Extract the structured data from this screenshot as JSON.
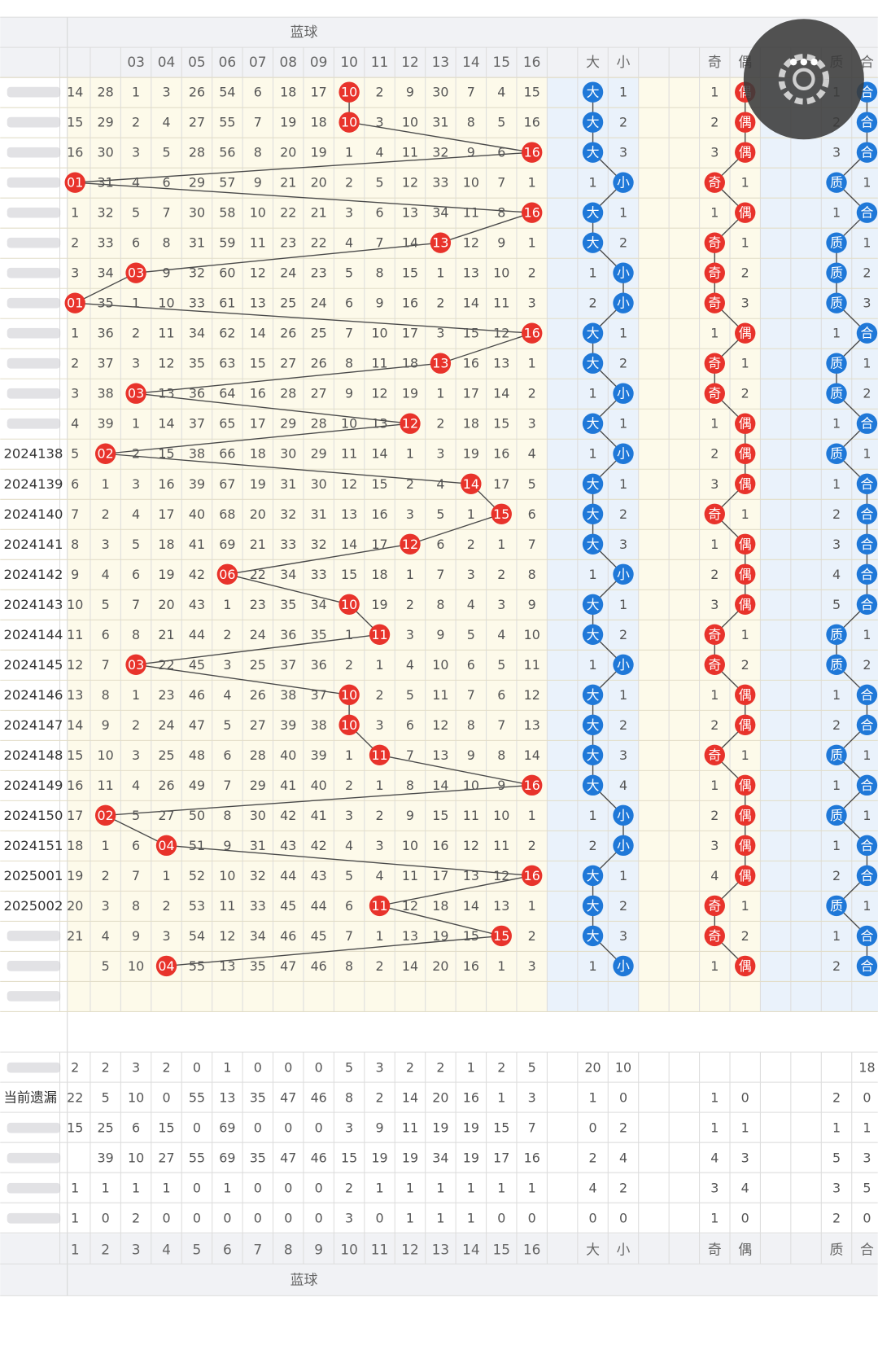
{
  "header": {
    "group_top": "蓝球",
    "columns": [
      null,
      null,
      "03",
      "04",
      "05",
      "06",
      "07",
      "08",
      "09",
      "10",
      "11",
      "12",
      "13",
      "14",
      "15",
      "16",
      null,
      "大",
      "小",
      null,
      null,
      "奇",
      "偶",
      null,
      null,
      "质",
      "合"
    ]
  },
  "rows": [
    {
      "issue": null,
      "blue": [
        "14",
        "28",
        "1",
        "3",
        "26",
        "54",
        "6",
        "18",
        "17",
        "10",
        "2",
        "9",
        "30",
        "7",
        "4",
        "15"
      ],
      "hit": 9,
      "big_small": [
        "大",
        "1"
      ],
      "odd_even": [
        "1",
        "偶"
      ],
      "prime_composite": [
        "1",
        "合"
      ]
    },
    {
      "issue": null,
      "blue": [
        "15",
        "29",
        "2",
        "4",
        "27",
        "55",
        "7",
        "19",
        "18",
        "10",
        "3",
        "10",
        "31",
        "8",
        "5",
        "16"
      ],
      "hit": 9,
      "big_small": [
        "大",
        "2"
      ],
      "odd_even": [
        "2",
        "偶"
      ],
      "prime_composite": [
        "2",
        "合"
      ]
    },
    {
      "issue": null,
      "blue": [
        "16",
        "30",
        "3",
        "5",
        "28",
        "56",
        "8",
        "20",
        "19",
        "1",
        "4",
        "11",
        "32",
        "9",
        "6",
        "16"
      ],
      "hit": 15,
      "big_small": [
        "大",
        "3"
      ],
      "odd_even": [
        "3",
        "偶"
      ],
      "prime_composite": [
        "3",
        "合"
      ]
    },
    {
      "issue": null,
      "blue": [
        "01",
        "31",
        "4",
        "6",
        "29",
        "57",
        "9",
        "21",
        "20",
        "2",
        "5",
        "12",
        "33",
        "10",
        "7",
        "1"
      ],
      "hit": 0,
      "big_small": [
        "1",
        "小"
      ],
      "odd_even": [
        "奇",
        "1"
      ],
      "prime_composite": [
        "质",
        "1"
      ]
    },
    {
      "issue": null,
      "blue": [
        "1",
        "32",
        "5",
        "7",
        "30",
        "58",
        "10",
        "22",
        "21",
        "3",
        "6",
        "13",
        "34",
        "11",
        "8",
        "16"
      ],
      "hit": 15,
      "big_small": [
        "大",
        "1"
      ],
      "odd_even": [
        "1",
        "偶"
      ],
      "prime_composite": [
        "1",
        "合"
      ]
    },
    {
      "issue": null,
      "blue": [
        "2",
        "33",
        "6",
        "8",
        "31",
        "59",
        "11",
        "23",
        "22",
        "4",
        "7",
        "14",
        "13",
        "12",
        "9",
        "1"
      ],
      "hit": 12,
      "big_small": [
        "大",
        "2"
      ],
      "odd_even": [
        "奇",
        "1"
      ],
      "prime_composite": [
        "质",
        "1"
      ]
    },
    {
      "issue": null,
      "blue": [
        "3",
        "34",
        "03",
        "9",
        "32",
        "60",
        "12",
        "24",
        "23",
        "5",
        "8",
        "15",
        "1",
        "13",
        "10",
        "2"
      ],
      "hit": 2,
      "big_small": [
        "1",
        "小"
      ],
      "odd_even": [
        "奇",
        "2"
      ],
      "prime_composite": [
        "质",
        "2"
      ]
    },
    {
      "issue": null,
      "blue": [
        "01",
        "35",
        "1",
        "10",
        "33",
        "61",
        "13",
        "25",
        "24",
        "6",
        "9",
        "16",
        "2",
        "14",
        "11",
        "3"
      ],
      "hit": 0,
      "big_small": [
        "2",
        "小"
      ],
      "odd_even": [
        "奇",
        "3"
      ],
      "prime_composite": [
        "质",
        "3"
      ]
    },
    {
      "issue": null,
      "blue": [
        "1",
        "36",
        "2",
        "11",
        "34",
        "62",
        "14",
        "26",
        "25",
        "7",
        "10",
        "17",
        "3",
        "15",
        "12",
        "16"
      ],
      "hit": 15,
      "big_small": [
        "大",
        "1"
      ],
      "odd_even": [
        "1",
        "偶"
      ],
      "prime_composite": [
        "1",
        "合"
      ]
    },
    {
      "issue": null,
      "blue": [
        "2",
        "37",
        "3",
        "12",
        "35",
        "63",
        "15",
        "27",
        "26",
        "8",
        "11",
        "18",
        "13",
        "16",
        "13",
        "1"
      ],
      "hit": 12,
      "big_small": [
        "大",
        "2"
      ],
      "odd_even": [
        "奇",
        "1"
      ],
      "prime_composite": [
        "质",
        "1"
      ]
    },
    {
      "issue": null,
      "blue": [
        "3",
        "38",
        "03",
        "13",
        "36",
        "64",
        "16",
        "28",
        "27",
        "9",
        "12",
        "19",
        "1",
        "17",
        "14",
        "2"
      ],
      "hit": 2,
      "big_small": [
        "1",
        "小"
      ],
      "odd_even": [
        "奇",
        "2"
      ],
      "prime_composite": [
        "质",
        "2"
      ]
    },
    {
      "issue": null,
      "blue": [
        "4",
        "39",
        "1",
        "14",
        "37",
        "65",
        "17",
        "29",
        "28",
        "10",
        "13",
        "12",
        "2",
        "18",
        "15",
        "3"
      ],
      "hit": 11,
      "big_small": [
        "大",
        "1"
      ],
      "odd_even": [
        "1",
        "偶"
      ],
      "prime_composite": [
        "1",
        "合"
      ]
    },
    {
      "issue": "2024138",
      "blue": [
        "5",
        "02",
        "2",
        "15",
        "38",
        "66",
        "18",
        "30",
        "29",
        "11",
        "14",
        "1",
        "3",
        "19",
        "16",
        "4"
      ],
      "hit": 1,
      "big_small": [
        "1",
        "小"
      ],
      "odd_even": [
        "2",
        "偶"
      ],
      "prime_composite": [
        "质",
        "1"
      ]
    },
    {
      "issue": "2024139",
      "blue": [
        "6",
        "1",
        "3",
        "16",
        "39",
        "67",
        "19",
        "31",
        "30",
        "12",
        "15",
        "2",
        "4",
        "14",
        "17",
        "5"
      ],
      "hit": 13,
      "big_small": [
        "大",
        "1"
      ],
      "odd_even": [
        "3",
        "偶"
      ],
      "prime_composite": [
        "1",
        "合"
      ]
    },
    {
      "issue": "2024140",
      "blue": [
        "7",
        "2",
        "4",
        "17",
        "40",
        "68",
        "20",
        "32",
        "31",
        "13",
        "16",
        "3",
        "5",
        "1",
        "15",
        "6"
      ],
      "hit": 14,
      "big_small": [
        "大",
        "2"
      ],
      "odd_even": [
        "奇",
        "1"
      ],
      "prime_composite": [
        "2",
        "合"
      ]
    },
    {
      "issue": "2024141",
      "blue": [
        "8",
        "3",
        "5",
        "18",
        "41",
        "69",
        "21",
        "33",
        "32",
        "14",
        "17",
        "12",
        "6",
        "2",
        "1",
        "7"
      ],
      "hit": 11,
      "big_small": [
        "大",
        "3"
      ],
      "odd_even": [
        "1",
        "偶"
      ],
      "prime_composite": [
        "3",
        "合"
      ]
    },
    {
      "issue": "2024142",
      "blue": [
        "9",
        "4",
        "6",
        "19",
        "42",
        "06",
        "22",
        "34",
        "33",
        "15",
        "18",
        "1",
        "7",
        "3",
        "2",
        "8"
      ],
      "hit": 5,
      "big_small": [
        "1",
        "小"
      ],
      "odd_even": [
        "2",
        "偶"
      ],
      "prime_composite": [
        "4",
        "合"
      ]
    },
    {
      "issue": "2024143",
      "blue": [
        "10",
        "5",
        "7",
        "20",
        "43",
        "1",
        "23",
        "35",
        "34",
        "10",
        "19",
        "2",
        "8",
        "4",
        "3",
        "9"
      ],
      "hit": 9,
      "big_small": [
        "大",
        "1"
      ],
      "odd_even": [
        "3",
        "偶"
      ],
      "prime_composite": [
        "5",
        "合"
      ]
    },
    {
      "issue": "2024144",
      "blue": [
        "11",
        "6",
        "8",
        "21",
        "44",
        "2",
        "24",
        "36",
        "35",
        "1",
        "11",
        "3",
        "9",
        "5",
        "4",
        "10"
      ],
      "hit": 10,
      "big_small": [
        "大",
        "2"
      ],
      "odd_even": [
        "奇",
        "1"
      ],
      "prime_composite": [
        "质",
        "1"
      ]
    },
    {
      "issue": "2024145",
      "blue": [
        "12",
        "7",
        "03",
        "22",
        "45",
        "3",
        "25",
        "37",
        "36",
        "2",
        "1",
        "4",
        "10",
        "6",
        "5",
        "11"
      ],
      "hit": 2,
      "big_small": [
        "1",
        "小"
      ],
      "odd_even": [
        "奇",
        "2"
      ],
      "prime_composite": [
        "质",
        "2"
      ]
    },
    {
      "issue": "2024146",
      "blue": [
        "13",
        "8",
        "1",
        "23",
        "46",
        "4",
        "26",
        "38",
        "37",
        "10",
        "2",
        "5",
        "11",
        "7",
        "6",
        "12"
      ],
      "hit": 9,
      "big_small": [
        "大",
        "1"
      ],
      "odd_even": [
        "1",
        "偶"
      ],
      "prime_composite": [
        "1",
        "合"
      ]
    },
    {
      "issue": "2024147",
      "blue": [
        "14",
        "9",
        "2",
        "24",
        "47",
        "5",
        "27",
        "39",
        "38",
        "10",
        "3",
        "6",
        "12",
        "8",
        "7",
        "13"
      ],
      "hit": 9,
      "big_small": [
        "大",
        "2"
      ],
      "odd_even": [
        "2",
        "偶"
      ],
      "prime_composite": [
        "2",
        "合"
      ]
    },
    {
      "issue": "2024148",
      "blue": [
        "15",
        "10",
        "3",
        "25",
        "48",
        "6",
        "28",
        "40",
        "39",
        "1",
        "11",
        "7",
        "13",
        "9",
        "8",
        "14"
      ],
      "hit": 10,
      "big_small": [
        "大",
        "3"
      ],
      "odd_even": [
        "奇",
        "1"
      ],
      "prime_composite": [
        "质",
        "1"
      ]
    },
    {
      "issue": "2024149",
      "blue": [
        "16",
        "11",
        "4",
        "26",
        "49",
        "7",
        "29",
        "41",
        "40",
        "2",
        "1",
        "8",
        "14",
        "10",
        "9",
        "16"
      ],
      "hit": 15,
      "big_small": [
        "大",
        "4"
      ],
      "odd_even": [
        "1",
        "偶"
      ],
      "prime_composite": [
        "1",
        "合"
      ]
    },
    {
      "issue": "2024150",
      "blue": [
        "17",
        "02",
        "5",
        "27",
        "50",
        "8",
        "30",
        "42",
        "41",
        "3",
        "2",
        "9",
        "15",
        "11",
        "10",
        "1"
      ],
      "hit": 1,
      "big_small": [
        "1",
        "小"
      ],
      "odd_even": [
        "2",
        "偶"
      ],
      "prime_composite": [
        "质",
        "1"
      ]
    },
    {
      "issue": "2024151",
      "blue": [
        "18",
        "1",
        "6",
        "04",
        "51",
        "9",
        "31",
        "43",
        "42",
        "4",
        "3",
        "10",
        "16",
        "12",
        "11",
        "2"
      ],
      "hit": 3,
      "big_small": [
        "2",
        "小"
      ],
      "odd_even": [
        "3",
        "偶"
      ],
      "prime_composite": [
        "1",
        "合"
      ]
    },
    {
      "issue": "2025001",
      "blue": [
        "19",
        "2",
        "7",
        "1",
        "52",
        "10",
        "32",
        "44",
        "43",
        "5",
        "4",
        "11",
        "17",
        "13",
        "12",
        "16"
      ],
      "hit": 15,
      "big_small": [
        "大",
        "1"
      ],
      "odd_even": [
        "4",
        "偶"
      ],
      "prime_composite": [
        "2",
        "合"
      ]
    },
    {
      "issue": "2025002",
      "blue": [
        "20",
        "3",
        "8",
        "2",
        "53",
        "11",
        "33",
        "45",
        "44",
        "6",
        "11",
        "12",
        "18",
        "14",
        "13",
        "1"
      ],
      "hit": 10,
      "big_small": [
        "大",
        "2"
      ],
      "odd_even": [
        "奇",
        "1"
      ],
      "prime_composite": [
        "质",
        "1"
      ]
    },
    {
      "issue": null,
      "blue": [
        "21",
        "4",
        "9",
        "3",
        "54",
        "12",
        "34",
        "46",
        "45",
        "7",
        "1",
        "13",
        "19",
        "15",
        "15",
        "2"
      ],
      "hit": 14,
      "big_small": [
        "大",
        "3"
      ],
      "odd_even": [
        "奇",
        "2"
      ],
      "prime_composite": [
        "1",
        "合"
      ]
    },
    {
      "issue": null,
      "blue": [
        null,
        "5",
        "10",
        "04",
        "55",
        "13",
        "35",
        "47",
        "46",
        "8",
        "2",
        "14",
        "20",
        "16",
        "1",
        "3"
      ],
      "hit": 3,
      "big_small": [
        "1",
        "小"
      ],
      "odd_even": [
        "1",
        "偶"
      ],
      "prime_composite": [
        "2",
        "合"
      ]
    }
  ],
  "stats": [
    {
      "label": null,
      "values": [
        2,
        2,
        3,
        2,
        0,
        1,
        0,
        0,
        0,
        5,
        3,
        2,
        2,
        1,
        2,
        5,
        20,
        10,
        null,
        null,
        null,
        18
      ]
    },
    {
      "label": "当前遗漏",
      "values": [
        22,
        5,
        10,
        0,
        55,
        13,
        35,
        47,
        46,
        8,
        2,
        14,
        20,
        16,
        1,
        3,
        1,
        0,
        1,
        0,
        2,
        0
      ]
    },
    {
      "label": null,
      "values": [
        15,
        25,
        6,
        15,
        0,
        69,
        0,
        0,
        0,
        3,
        9,
        11,
        19,
        19,
        15,
        7,
        0,
        2,
        1,
        1,
        1,
        1
      ]
    },
    {
      "label": null,
      "values": [
        null,
        39,
        10,
        27,
        55,
        69,
        35,
        47,
        46,
        15,
        19,
        19,
        34,
        19,
        17,
        16,
        2,
        4,
        4,
        3,
        5,
        3
      ]
    },
    {
      "label": null,
      "values": [
        1,
        1,
        1,
        1,
        0,
        1,
        0,
        0,
        0,
        2,
        1,
        1,
        1,
        1,
        1,
        1,
        4,
        2,
        3,
        4,
        3,
        5
      ]
    },
    {
      "label": null,
      "values": [
        1,
        0,
        2,
        0,
        0,
        0,
        0,
        0,
        0,
        3,
        0,
        1,
        1,
        1,
        0,
        0,
        0,
        0,
        1,
        0,
        2,
        0
      ]
    }
  ],
  "footer": {
    "columns": [
      1,
      2,
      3,
      4,
      5,
      6,
      7,
      8,
      9,
      10,
      11,
      12,
      13,
      14,
      15,
      16,
      null,
      "大",
      "小",
      null,
      null,
      "奇",
      "偶",
      null,
      null,
      "质",
      "合"
    ],
    "group_bottom": "蓝球"
  }
}
